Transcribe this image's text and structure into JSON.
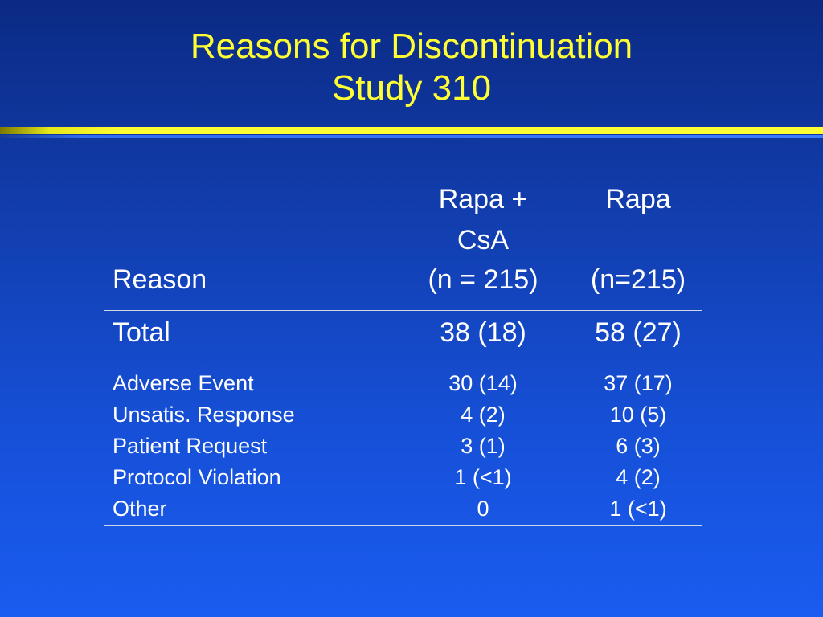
{
  "slide": {
    "title_line1": "Reasons for Discontinuation",
    "title_line2": "Study 310"
  },
  "table": {
    "header": {
      "reason": "Reason",
      "col2_line1": "Rapa +",
      "col2_line2": "CsA",
      "col2_line3": "(n = 215)",
      "col3_line1": "Rapa",
      "col3_line3": "(n=215)"
    },
    "total": {
      "label": "Total",
      "rapa_csa": "38 (18)",
      "rapa": "58 (27)"
    },
    "rows": [
      {
        "reason": "Adverse Event",
        "rapa_csa": "30 (14)",
        "rapa": "37 (17)"
      },
      {
        "reason": "Unsatis. Response",
        "rapa_csa": "4 (2)",
        "rapa": "10 (5)"
      },
      {
        "reason": "Patient Request",
        "rapa_csa": "3 (1)",
        "rapa": "6 (3)"
      },
      {
        "reason": "Protocol Violation",
        "rapa_csa": "1 (<1)",
        "rapa": "4 (2)"
      },
      {
        "reason": "Other",
        "rapa_csa": "0",
        "rapa": "1 (<1)"
      }
    ]
  },
  "colors": {
    "title": "#ffff33",
    "text": "#ffffff",
    "background": "#1650d8"
  }
}
